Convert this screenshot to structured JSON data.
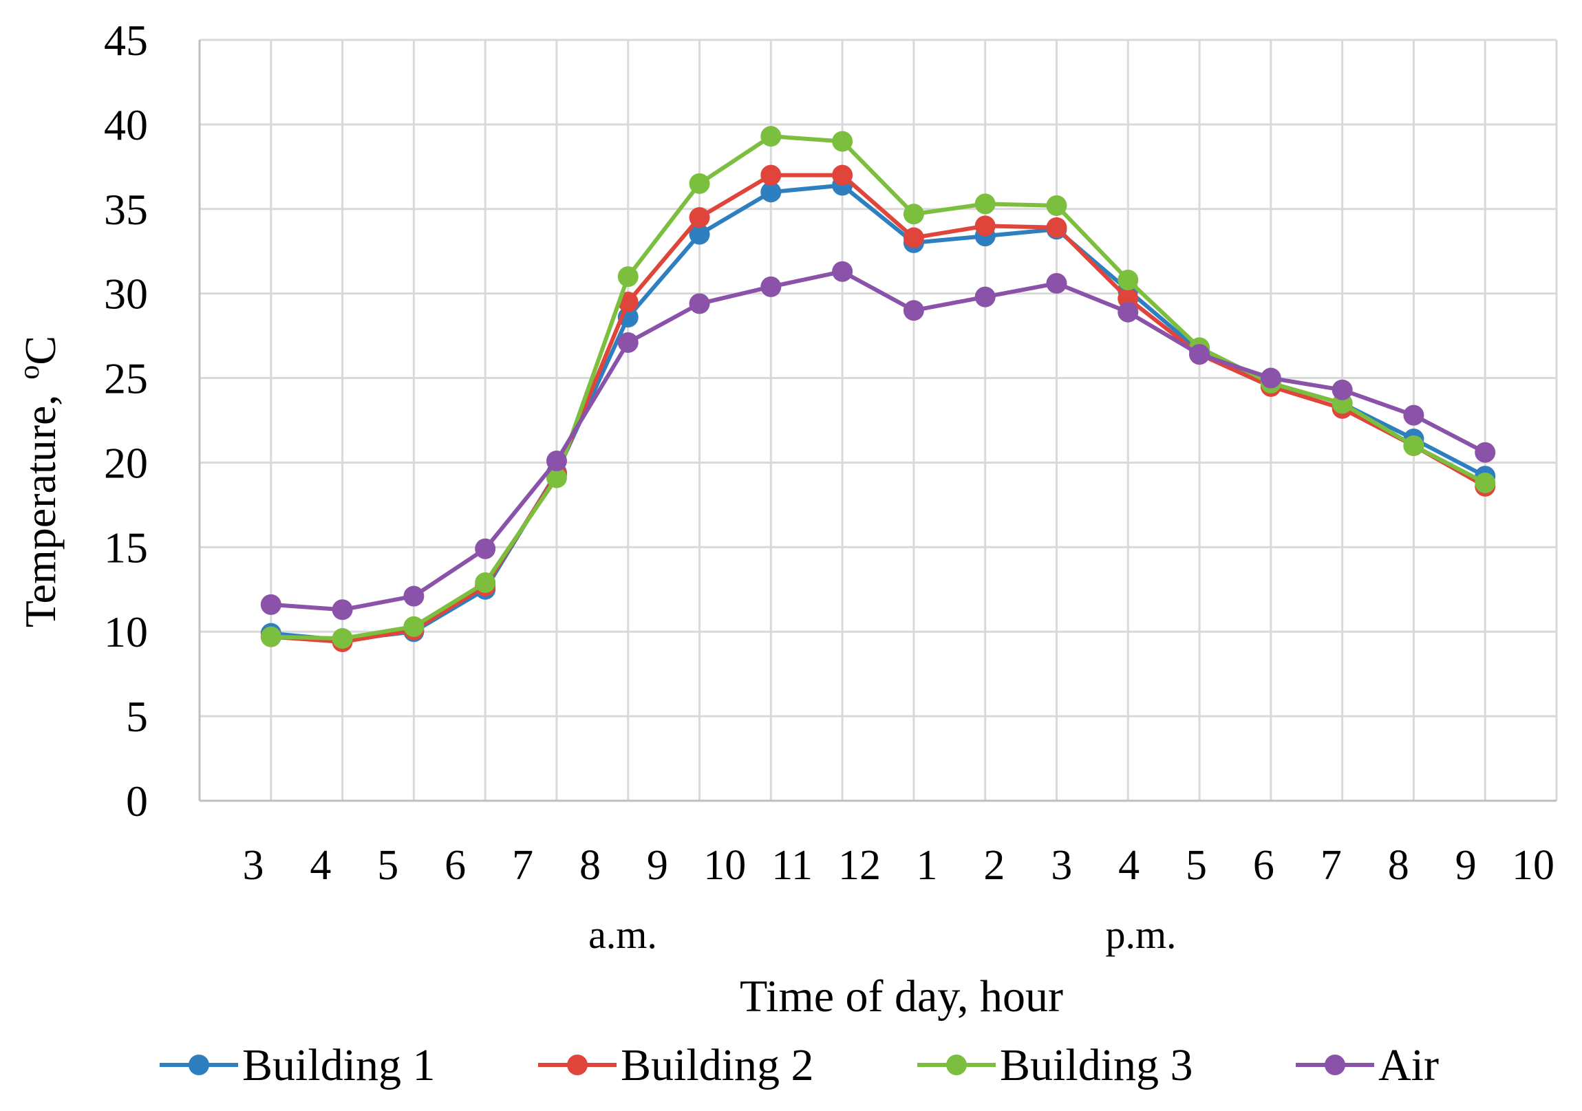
{
  "chart_data": {
    "type": "line",
    "title": "",
    "xlabel": "Time of day, hour",
    "ylabel": "Temperature,",
    "ylabel_superscript": "o",
    "ylabel_unit": "C",
    "ylim": [
      0,
      45
    ],
    "ytick_step": 5,
    "yticks": [
      "0",
      "5",
      "10",
      "15",
      "20",
      "25",
      "30",
      "35",
      "40",
      "45"
    ],
    "x_tick_labels": [
      "3",
      "4",
      "5",
      "6",
      "7",
      "8",
      "9",
      "10",
      "11",
      "12",
      "1",
      "2",
      "3",
      "4",
      "5",
      "6",
      "7",
      "8",
      "9",
      "10"
    ],
    "period_labels": [
      "a.m.",
      "p.m."
    ],
    "grid": true,
    "legend_position": "bottom",
    "series": [
      {
        "name": "Building 1",
        "color": "#2E7FC0",
        "values": [
          9.9,
          9.5,
          10.0,
          12.5,
          19.4,
          28.6,
          33.5,
          36.0,
          36.4,
          33.0,
          33.4,
          33.8,
          30.2,
          26.6,
          24.7,
          23.5,
          21.4,
          19.2
        ]
      },
      {
        "name": "Building 2",
        "color": "#E0453C",
        "values": [
          9.7,
          9.4,
          10.1,
          12.7,
          19.3,
          29.5,
          34.5,
          37.0,
          37.0,
          33.3,
          34.0,
          33.9,
          29.7,
          26.4,
          24.5,
          23.2,
          21.0,
          18.6
        ]
      },
      {
        "name": "Building 3",
        "color": "#7CBF3F",
        "values": [
          9.7,
          9.6,
          10.3,
          12.9,
          19.1,
          31.0,
          36.5,
          39.3,
          39.0,
          34.7,
          35.3,
          35.2,
          30.8,
          26.8,
          24.7,
          23.5,
          21.0,
          18.8
        ]
      },
      {
        "name": "Air",
        "color": "#8A52A8",
        "values": [
          11.6,
          11.3,
          12.1,
          14.9,
          20.1,
          27.1,
          29.4,
          30.4,
          31.3,
          29.0,
          29.8,
          30.6,
          28.9,
          26.4,
          25.0,
          24.3,
          22.8,
          20.6
        ]
      }
    ]
  }
}
